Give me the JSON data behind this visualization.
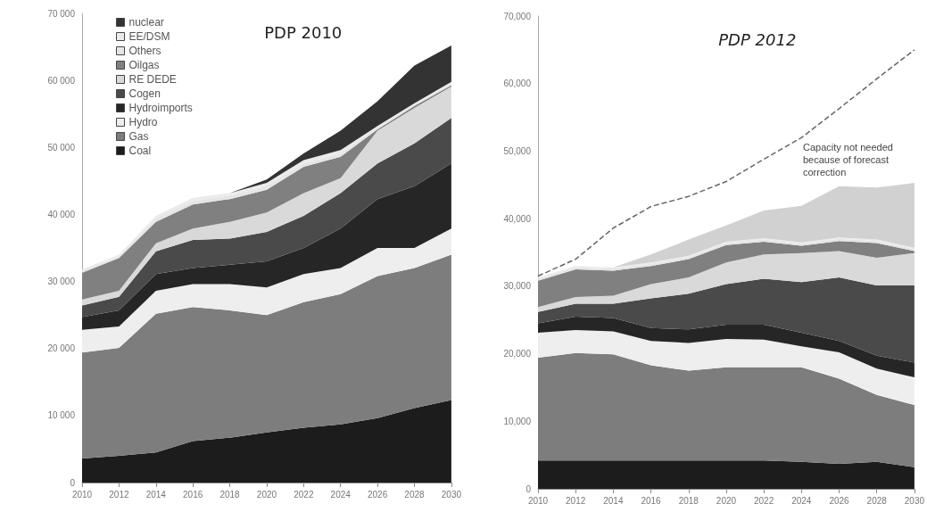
{
  "chart_data": [
    {
      "type": "area",
      "title": "PDP 2010",
      "stacked": true,
      "legend": "top left",
      "categories": [
        "2010",
        "2012",
        "2014",
        "2016",
        "2018",
        "2020",
        "2022",
        "2024",
        "2026",
        "2028",
        "2030"
      ],
      "ylim": [
        0,
        70000
      ],
      "yticks": [
        {
          "value": 0,
          "label": "0"
        },
        {
          "value": 10000,
          "label": "10 000"
        },
        {
          "value": 20000,
          "label": "20 000"
        },
        {
          "value": 30000,
          "label": "30 000"
        },
        {
          "value": 40000,
          "label": "40 000"
        },
        {
          "value": 50000,
          "label": "50 000"
        },
        {
          "value": 60000,
          "label": "60 000"
        },
        {
          "value": 70000,
          "label": "70 000"
        }
      ],
      "series": [
        {
          "name": "Coal",
          "color": "#1c1c1c",
          "values": [
            3600,
            4000,
            4500,
            6200,
            6700,
            7500,
            8200,
            8700,
            9600,
            11100,
            12300
          ]
        },
        {
          "name": "Gas",
          "color": "#7d7d7d",
          "values": [
            15800,
            16100,
            20700,
            20000,
            19000,
            17500,
            18700,
            19400,
            21200,
            20900,
            21700
          ]
        },
        {
          "name": "Hydro",
          "color": "#eeeeee",
          "values": [
            3400,
            3200,
            3400,
            3400,
            3900,
            4100,
            4200,
            3900,
            4200,
            3000,
            3900
          ]
        },
        {
          "name": "Hydroimports",
          "color": "#262626",
          "values": [
            1900,
            2400,
            2500,
            2400,
            2900,
            3900,
            3900,
            5900,
            7300,
            9200,
            9700
          ]
        },
        {
          "name": "Cogen",
          "color": "#4a4a4a",
          "values": [
            1700,
            2000,
            3400,
            4200,
            3900,
            4400,
            4800,
            5300,
            5300,
            6400,
            6800
          ]
        },
        {
          "name": "RE DEDE",
          "color": "#d9d9d9",
          "values": [
            900,
            900,
            1200,
            1700,
            2500,
            2900,
            3400,
            2200,
            4900,
            5300,
            4700
          ]
        },
        {
          "name": "Oilgas",
          "color": "#808080",
          "values": [
            4000,
            4900,
            3200,
            3600,
            3400,
            3400,
            3900,
            3200,
            200,
            300,
            200
          ]
        },
        {
          "name": "Others",
          "color": "#e5e5e5",
          "values": [
            300,
            200,
            500,
            500,
            500,
            500,
            500,
            500,
            300,
            200,
            300
          ]
        },
        {
          "name": "EE/DSM",
          "color": "#ebebeb",
          "values": [
            200,
            300,
            400,
            500,
            400,
            500,
            500,
            500,
            200,
            200,
            200
          ]
        },
        {
          "name": "nuclear",
          "color": "#333333",
          "values": [
            0,
            0,
            0,
            0,
            0,
            500,
            1000,
            2900,
            3700,
            5600,
            5400
          ]
        }
      ]
    },
    {
      "type": "area",
      "title": "PDP 2012",
      "stacked": true,
      "categories": [
        "2010",
        "2012",
        "2014",
        "2016",
        "2018",
        "2020",
        "2022",
        "2024",
        "2026",
        "2028",
        "2030"
      ],
      "ylim": [
        0,
        70000
      ],
      "yticks": [
        {
          "value": 0,
          "label": "0"
        },
        {
          "value": 10000,
          "label": "10,000"
        },
        {
          "value": 20000,
          "label": "20,000"
        },
        {
          "value": 30000,
          "label": "30,000"
        },
        {
          "value": 40000,
          "label": "40,000"
        },
        {
          "value": 50000,
          "label": "50,000"
        },
        {
          "value": 60000,
          "label": "60,000"
        },
        {
          "value": 70000,
          "label": "70,000"
        }
      ],
      "annotations": [
        "Capacity not needed because of forecast correction"
      ],
      "series": [
        {
          "color": "#1c1c1c",
          "values": [
            4200,
            4200,
            4200,
            4200,
            4200,
            4200,
            4200,
            4000,
            3700,
            4000,
            3200
          ]
        },
        {
          "color": "#7d7d7d",
          "values": [
            15200,
            15900,
            15700,
            14100,
            13300,
            13800,
            13800,
            14000,
            12600,
            9900,
            9200
          ]
        },
        {
          "color": "#eeeeee",
          "values": [
            3700,
            3400,
            3400,
            3600,
            4100,
            4200,
            4100,
            3100,
            3900,
            3900,
            4100
          ]
        },
        {
          "color": "#262626",
          "values": [
            1400,
            2000,
            2000,
            1900,
            2000,
            2100,
            2200,
            2000,
            1700,
            1900,
            2200
          ]
        },
        {
          "color": "#4a4a4a",
          "values": [
            1700,
            1900,
            2100,
            4400,
            5300,
            6000,
            6800,
            7500,
            9400,
            10400,
            11400
          ]
        },
        {
          "color": "#d9d9d9",
          "values": [
            700,
            1000,
            1200,
            2100,
            2400,
            3200,
            3600,
            4300,
            3900,
            4100,
            4800
          ]
        },
        {
          "color": "#808080",
          "values": [
            3900,
            4100,
            3700,
            2700,
            2700,
            2600,
            1900,
            1100,
            1500,
            2200,
            300
          ]
        },
        {
          "color": "#e5e5e5",
          "values": [
            300,
            300,
            300,
            300,
            300,
            300,
            300,
            300,
            300,
            300,
            300
          ]
        },
        {
          "color": "#ebebeb",
          "values": [
            200,
            200,
            200,
            200,
            200,
            200,
            200,
            200,
            200,
            200,
            200
          ]
        },
        {
          "color": "#d1d1d1",
          "values": [
            0,
            0,
            0,
            1200,
            2400,
            2400,
            4100,
            5400,
            7600,
            7700,
            9600
          ]
        },
        {
          "type": "line",
          "color": "#666666",
          "line_style": "dashed",
          "values": [
            31500,
            34000,
            38600,
            41800,
            43300,
            45500,
            48800,
            52000,
            56300,
            60700,
            65000
          ]
        }
      ]
    }
  ]
}
